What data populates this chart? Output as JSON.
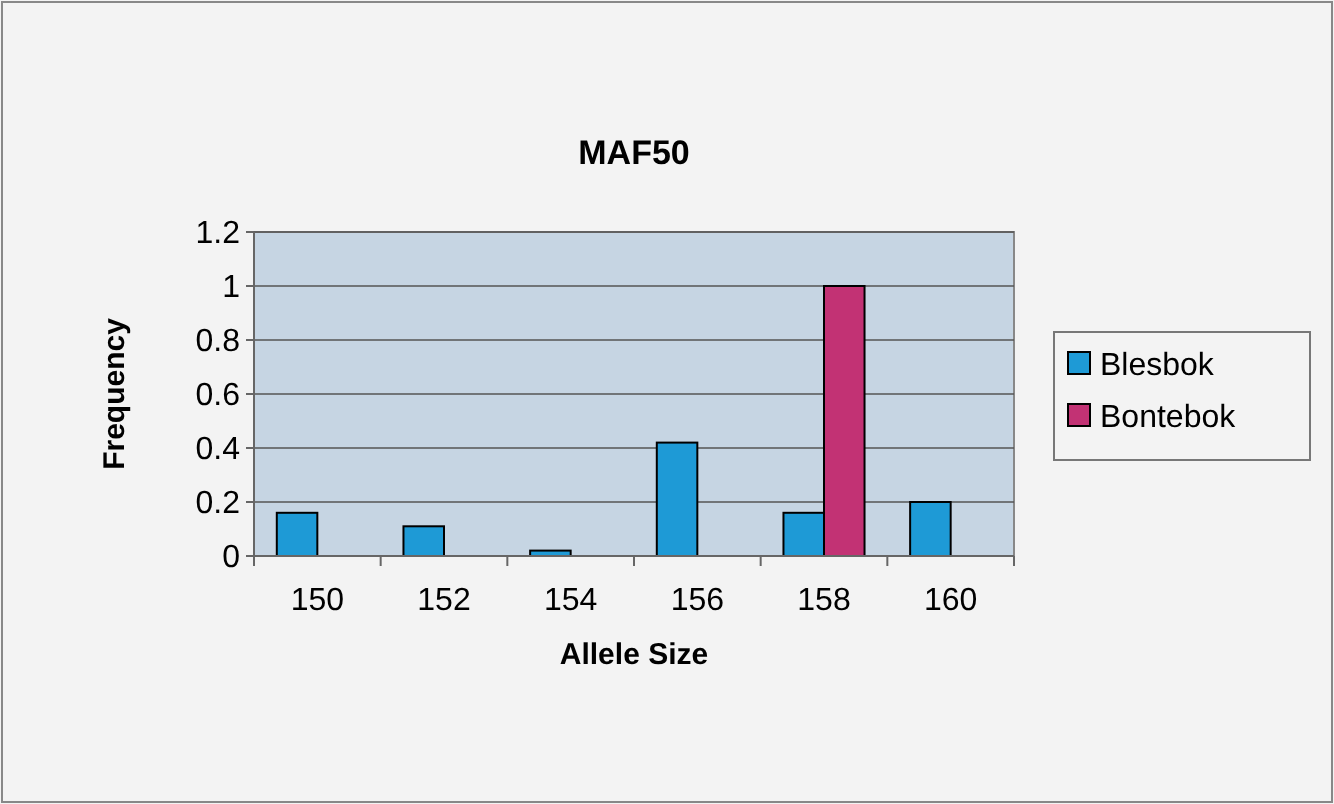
{
  "chart_data": {
    "type": "bar",
    "title": "MAF50",
    "xlabel": "Allele Size",
    "ylabel": "Frequency",
    "categories": [
      "150",
      "152",
      "154",
      "156",
      "158",
      "160"
    ],
    "series": [
      {
        "name": "Blesbok",
        "color": "#1e9ad6",
        "values": [
          0.16,
          0.11,
          0.02,
          0.42,
          0.16,
          0.2
        ]
      },
      {
        "name": "Bontebok",
        "color": "#c23274",
        "values": [
          0,
          0,
          0,
          0,
          1,
          0
        ]
      }
    ],
    "ylim": [
      0,
      1.2
    ],
    "yticks": [
      0,
      0.2,
      0.4,
      0.6,
      0.8,
      1,
      1.2
    ],
    "grid": "y",
    "legend": "right"
  }
}
